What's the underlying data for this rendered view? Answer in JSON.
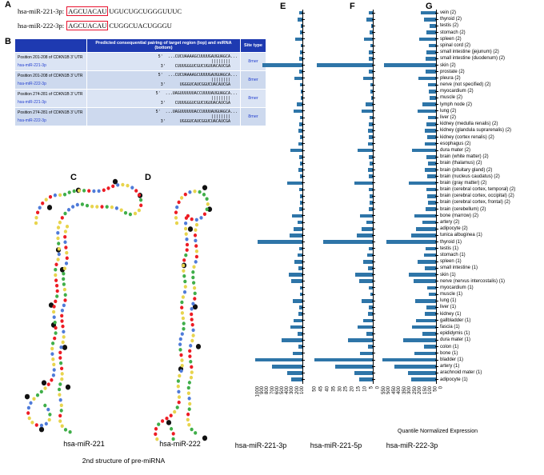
{
  "panel_letters": {
    "a": "A",
    "b": "B",
    "c": "C",
    "d": "D",
    "e": "E",
    "f": "F",
    "g": "G"
  },
  "panelA": {
    "seed_box_color": "#e8112d",
    "lines": [
      {
        "name": "hsa-miR-221-3p:",
        "seed": "AGCUACAU",
        "rest": "UGUCUGCUGGGUUUC"
      },
      {
        "name": "hsa-miR-222-3p:",
        "seed": "AGCUACAU",
        "rest": "CUGGCUACUGGGU"
      }
    ]
  },
  "panelB": {
    "header_bg": "#1e3ab1",
    "header": {
      "pairing": "Predicted consequential pairing of target region (top) and miRNA (bottom)",
      "site": "Site type"
    },
    "rows": [
      {
        "position": "Position 201-208 of CDKN1B 3' UTR",
        "mirna": "hsa-miR-221-3p",
        "target": "5'  ...CUCUAAAAGCUUUUGAUGUAGCA...",
        "pairs": "||||||||",
        "mirna_seq": "3'    CUUUGGGUCGUCUGUUACAUCGA",
        "site": "8mer"
      },
      {
        "position": "Position 201-208 of CDKN1B 3' UTR",
        "mirna": "hsa-miR-222-3p",
        "target": "5'  ...CUCUAAAAGCUUUUGAUGUAGCA...",
        "pairs": "||||||||",
        "mirna_seq": "3'      UGGGUCAUCGGUCUACAUCGA",
        "site": "8mer"
      },
      {
        "position": "Position 274-281 of CDKN1B 3' UTR",
        "mirna": "hsa-miR-221-3p",
        "target": "5'  ...UAGUUUUUUACCUUUUAUGUAGCA...",
        "pairs": "||||||||",
        "mirna_seq": "3'    CUUUGGGUCGUCUGUUACAUCGA",
        "site": "8mer"
      },
      {
        "position": "Position 274-281 of CDKN1B 3' UTR",
        "mirna": "hsa-miR-222-3p",
        "target": "5'  ...UAGUUUUUUACCUUUUAUGUAGCA...",
        "pairs": "||||||||",
        "mirna_seq": "3'      UGGGUCAUCGGUCUACAUCGA",
        "site": "8mer"
      }
    ]
  },
  "structures": {
    "left_label": "hsa-miR-221",
    "right_label": "hsa-miR-222",
    "caption": "2nd structure of pre-miRNA",
    "dot_colors": [
      "#3fae49",
      "#ed1c24",
      "#4f7bd9",
      "#e8d44d"
    ]
  },
  "chart_data": {
    "type": "bar",
    "orientation": "horizontal",
    "bars_point": "left",
    "bar_color": "#2e75a8",
    "xlabel": "Quantile Normalized Expression",
    "legend_position": "none",
    "categories": [
      "vein (2)",
      "thyroid (2)",
      "testis (2)",
      "stomach (2)",
      "spleen (2)",
      "spinal cord (2)",
      "small intestine (jejunum) (2)",
      "small intestine (duodenum) (2)",
      "skin (2)",
      "prostate (2)",
      "pleura (2)",
      "nerve (not specified) (2)",
      "myocardium (2)",
      "muscle (2)",
      "lymph node (2)",
      "lung (2)",
      "liver (2)",
      "kidney (medulla renalis) (2)",
      "kidney (glandula suprarenalis) (2)",
      "kidney (cortex renalis) (2)",
      "esophagus (2)",
      "dura mater (2)",
      "brain (white matter) (2)",
      "brain (thalamus) (2)",
      "brain (pituitary gland) (2)",
      "brain (nucleus caudatus) (2)",
      "brain (gray matter) (2)",
      "brain (cerebral cortex, temporal) (2)",
      "brain (cerebral cortex, occipital) (2)",
      "brain (cerebral cortex, frontal) (2)",
      "brain (cerebellum) (2)",
      "bone (marrow) (2)",
      "artery (2)",
      "adipocyte (2)",
      "tunica albuginea (1)",
      "thyroid (1)",
      "testis (1)",
      "stomach (1)",
      "spleen (1)",
      "small intestine (1)",
      "skin (1)",
      "nerve (nervus intercostalis) (1)",
      "myocardium (1)",
      "muscle (1)",
      "lung (1)",
      "liver (1)",
      "kidney (1)",
      "gallbladder (1)",
      "fascia (1)",
      "epididymis (1)",
      "dura mater (1)",
      "colon (1)",
      "bone (1)",
      "bladder (1)",
      "artery (1)",
      "arachnoid mater (1)",
      "adipocyte (1)"
    ],
    "series": [
      {
        "name": "hsa-miR-221-3p",
        "panel": "E",
        "xlim": [
          0,
          1000
        ],
        "ticks": [
          1000,
          900,
          800,
          700,
          600,
          500,
          400,
          300,
          200,
          100
        ],
        "values": [
          60,
          90,
          30,
          50,
          140,
          40,
          55,
          60,
          800,
          70,
          160,
          45,
          35,
          30,
          110,
          170,
          50,
          60,
          75,
          55,
          85,
          240,
          60,
          50,
          80,
          55,
          300,
          65,
          55,
          50,
          70,
          210,
          100,
          180,
          260,
          900,
          70,
          90,
          160,
          75,
          280,
          230,
          55,
          45,
          190,
          65,
          75,
          170,
          250,
          95,
          420,
          85,
          200,
          950,
          620,
          300,
          230
        ]
      },
      {
        "name": "hsa-miR-221-5p",
        "panel": "F",
        "xlim": [
          0,
          50
        ],
        "ticks": [
          50,
          45,
          40,
          35,
          30,
          25,
          20,
          15,
          10,
          5,
          0
        ],
        "values": [
          3,
          5,
          1.5,
          2.5,
          7,
          2,
          3,
          3,
          45,
          3.5,
          8,
          2,
          2,
          1.5,
          5.5,
          9,
          2.5,
          3,
          4,
          3,
          4,
          12,
          3,
          2.5,
          4,
          3,
          15,
          3,
          2.5,
          2.5,
          3.5,
          10,
          5,
          9,
          13,
          40,
          3.5,
          4.5,
          8,
          4,
          14,
          11,
          3,
          2,
          9,
          3,
          4,
          8,
          12,
          5,
          20,
          4,
          10,
          47,
          30,
          15,
          11
        ]
      },
      {
        "name": "hsa-miR-222-3p",
        "panel": "G",
        "xlim": [
          0,
          550
        ],
        "ticks": [
          550,
          500,
          450,
          400,
          350,
          300,
          250,
          200,
          150,
          100,
          50,
          0
        ],
        "values": [
          150,
          120,
          60,
          90,
          160,
          70,
          90,
          100,
          500,
          100,
          170,
          80,
          70,
          60,
          130,
          180,
          80,
          90,
          110,
          85,
          110,
          230,
          90,
          80,
          110,
          85,
          260,
          95,
          85,
          80,
          100,
          210,
          130,
          190,
          240,
          480,
          100,
          120,
          180,
          105,
          260,
          220,
          85,
          70,
          200,
          95,
          105,
          190,
          230,
          130,
          320,
          115,
          210,
          520,
          400,
          270,
          240
        ]
      }
    ]
  }
}
